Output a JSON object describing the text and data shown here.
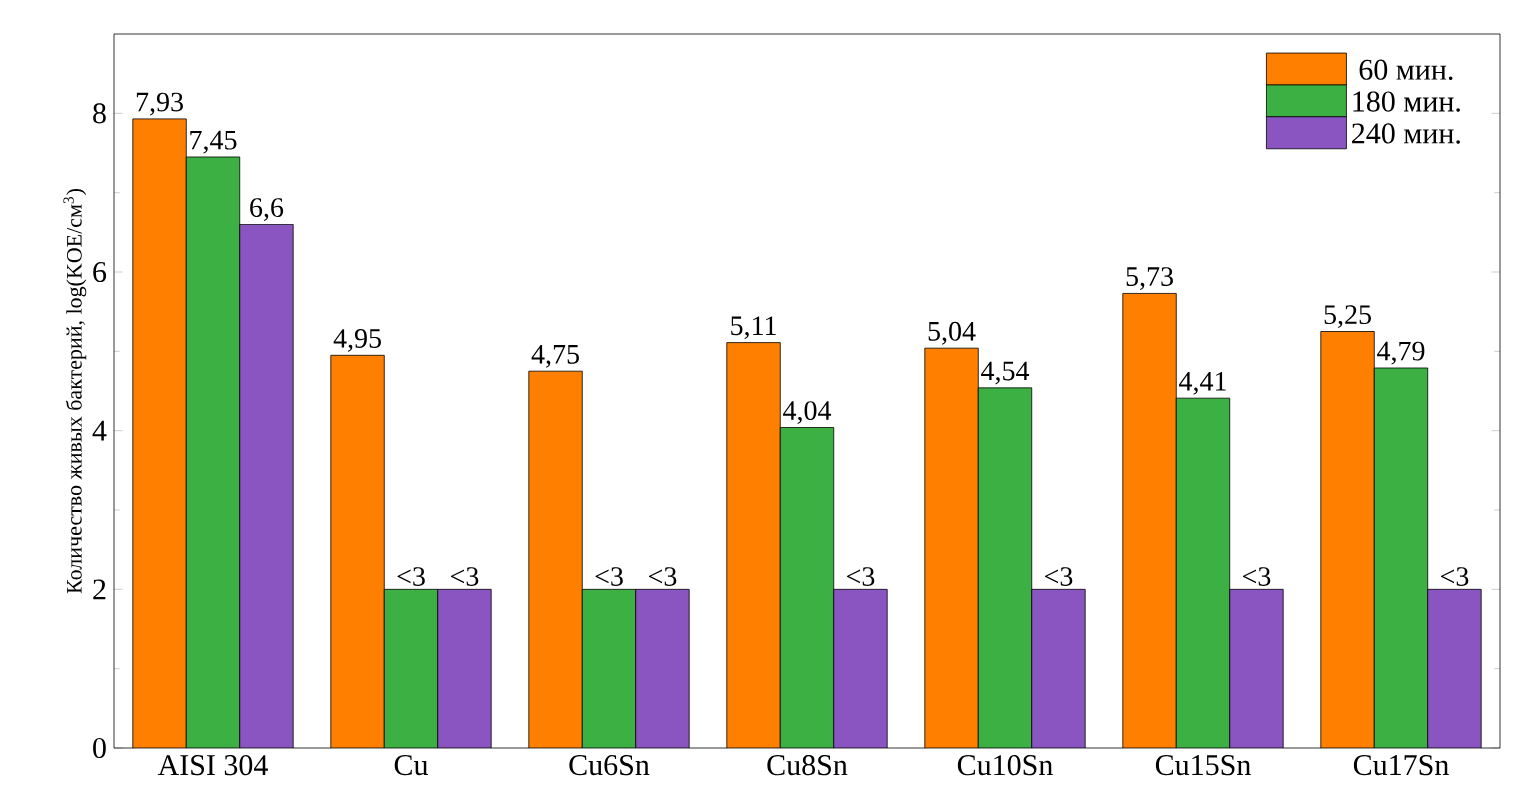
{
  "chart_data": {
    "type": "bar",
    "ylabel": "Количество живых бактерий, log(KOE/см$^{3}$)",
    "categories": [
      "AISI 304",
      "Cu",
      "Cu6Sn",
      "Cu8Sn",
      "Cu10Sn",
      "Cu15Sn",
      "Cu17Sn"
    ],
    "series": [
      {
        "name": "60 мин.",
        "color": "#ff8000",
        "values": [
          7.93,
          4.95,
          4.75,
          5.11,
          5.04,
          5.73,
          5.25
        ],
        "value_labels": [
          "7,93",
          "4,95",
          "4,75",
          "5,11",
          "5,04",
          "5,73",
          "5,25"
        ]
      },
      {
        "name": "180 мин.",
        "color": "#3cb043",
        "values": [
          7.45,
          2,
          2,
          4.04,
          4.54,
          4.41,
          4.79
        ],
        "value_labels": [
          "7,45",
          "<3",
          "<3",
          "4,04",
          "4,54",
          "4,41",
          "4,79"
        ]
      },
      {
        "name": "240 мин.",
        "color": "#8a55c0",
        "values": [
          6.6,
          2,
          2,
          2,
          2,
          2,
          2
        ],
        "value_labels": [
          "6,6",
          "<3",
          "<3",
          "<3",
          "<3",
          "<3",
          "<3"
        ]
      }
    ],
    "ylim": [
      0,
      9
    ],
    "yticks": [
      0,
      2,
      4,
      6,
      8
    ],
    "legend": "top right",
    "grid": false
  }
}
